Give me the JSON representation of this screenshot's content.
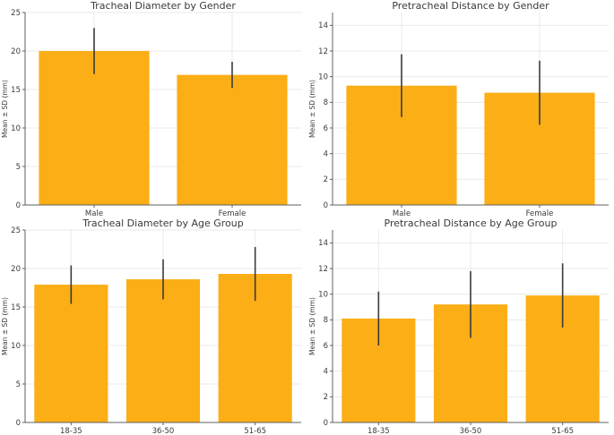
{
  "figure": {
    "background": "#FFFFFF",
    "bar_color": "#FCAE16",
    "error_bar_color": "#3A3A3A",
    "grid_color": "#EAEAEA",
    "spine_color": "#5F5F5F",
    "text_color": "#3A3A3A"
  },
  "chart_data": [
    {
      "type": "bar",
      "title": "Tracheal Diameter by Gender",
      "xlabel": "",
      "ylabel": "Mean ± SD (mm)",
      "categories": [
        "Male",
        "Female"
      ],
      "values": [
        20.0,
        16.9
      ],
      "errors": [
        3.0,
        1.7
      ],
      "ylim": [
        0,
        25
      ],
      "yticks": [
        0,
        5,
        10,
        15,
        20,
        25
      ],
      "grid": true,
      "legend": false
    },
    {
      "type": "bar",
      "title": "Pretracheal Distance by Gender",
      "xlabel": "",
      "ylabel": "Mean ± SD (mm)",
      "categories": [
        "Male",
        "Female"
      ],
      "values": [
        9.3,
        8.75
      ],
      "errors": [
        2.45,
        2.5
      ],
      "ylim": [
        0,
        15
      ],
      "yticks": [
        0,
        2,
        4,
        6,
        8,
        10,
        12,
        14
      ],
      "grid": true,
      "legend": false
    },
    {
      "type": "bar",
      "title": "Tracheal Diameter by Age Group",
      "xlabel": "",
      "ylabel": "Mean ± SD (mm)",
      "categories": [
        "18-35",
        "36-50",
        "51-65"
      ],
      "values": [
        17.9,
        18.6,
        19.3
      ],
      "errors": [
        2.5,
        2.6,
        3.5
      ],
      "ylim": [
        0,
        25
      ],
      "yticks": [
        0,
        5,
        10,
        15,
        20,
        25
      ],
      "grid": true,
      "legend": false
    },
    {
      "type": "bar",
      "title": "Pretracheal Distance by Age Group",
      "xlabel": "",
      "ylabel": "Mean ± SD (mm)",
      "categories": [
        "18-35",
        "36-50",
        "51-65"
      ],
      "values": [
        8.1,
        9.2,
        9.9
      ],
      "errors": [
        2.1,
        2.6,
        2.5
      ],
      "ylim": [
        0,
        15
      ],
      "yticks": [
        0,
        2,
        4,
        6,
        8,
        10,
        12,
        14
      ],
      "grid": true,
      "legend": false
    }
  ]
}
